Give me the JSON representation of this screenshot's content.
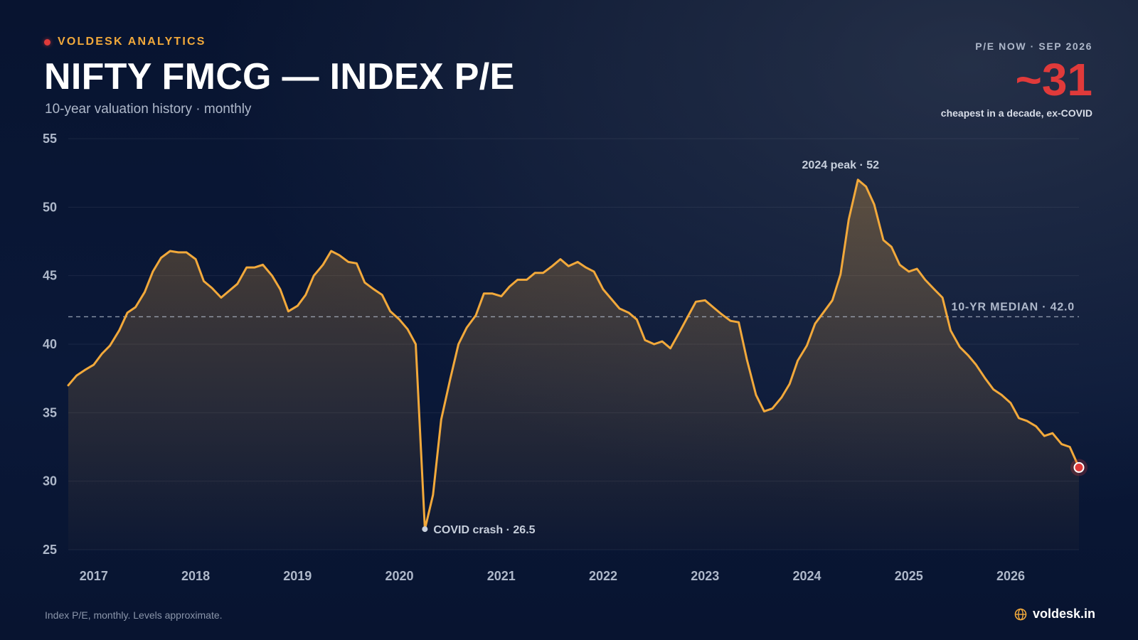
{
  "header": {
    "brand": "VOLDESK ANALYTICS",
    "title": "NIFTY FMCG — INDEX P/E",
    "subtitle": "10-year valuation history · monthly"
  },
  "kpi": {
    "label": "P/E NOW · SEP 2026",
    "value": "~31",
    "note": "cheapest in a decade, ex-COVID"
  },
  "footer": {
    "note": "Index P/E, monthly. Levels approximate.",
    "site": "voldesk.in",
    "site_icon": "globe-icon"
  },
  "colors": {
    "accent": "#f2a93b",
    "alert": "#e03a3a",
    "muted": "#aeb8ca",
    "background": "#0a1630"
  },
  "chart_data": {
    "type": "area",
    "ylim": [
      25,
      55
    ],
    "yticks": [
      55,
      50,
      45,
      40,
      35,
      30,
      25
    ],
    "xlim": [
      2016.92,
      2026.84
    ],
    "xticks": [
      {
        "label": "2017",
        "x": 2017.17
      },
      {
        "label": "2018",
        "x": 2018.17
      },
      {
        "label": "2019",
        "x": 2019.17
      },
      {
        "label": "2020",
        "x": 2020.17
      },
      {
        "label": "2021",
        "x": 2021.17
      },
      {
        "label": "2022",
        "x": 2022.17
      },
      {
        "label": "2023",
        "x": 2023.17
      },
      {
        "label": "2024",
        "x": 2024.17
      },
      {
        "label": "2025",
        "x": 2025.17
      },
      {
        "label": "2026",
        "x": 2026.17
      }
    ],
    "grid": true,
    "series": [
      {
        "x": [
          2016.92,
          2017.0,
          2017.08,
          2017.17,
          2017.25,
          2017.33,
          2017.42,
          2017.5,
          2017.58,
          2017.67,
          2017.75,
          2017.83,
          2017.92,
          2018.0,
          2018.08,
          2018.17,
          2018.25,
          2018.33,
          2018.42,
          2018.5,
          2018.58,
          2018.67,
          2018.75,
          2018.83,
          2018.92,
          2019.0,
          2019.08,
          2019.17,
          2019.25,
          2019.33,
          2019.42,
          2019.5,
          2019.58,
          2019.67,
          2019.75,
          2019.83,
          2019.92,
          2020.0,
          2020.08,
          2020.17,
          2020.25,
          2020.33,
          2020.42,
          2020.5,
          2020.58,
          2020.67,
          2020.75,
          2020.83,
          2020.92,
          2021.0,
          2021.08,
          2021.17,
          2021.25,
          2021.33,
          2021.42,
          2021.5,
          2021.58,
          2021.67,
          2021.75,
          2021.83,
          2021.92,
          2022.0,
          2022.08,
          2022.17,
          2022.25,
          2022.33,
          2022.42,
          2022.5,
          2022.58,
          2022.67,
          2022.75,
          2022.83,
          2022.92,
          2023.0,
          2023.08,
          2023.17,
          2023.25,
          2023.33,
          2023.42,
          2023.5,
          2023.58,
          2023.67,
          2023.75,
          2023.83,
          2023.92,
          2024.0,
          2024.08,
          2024.17,
          2024.25,
          2024.33,
          2024.42,
          2024.5,
          2024.58,
          2024.67,
          2024.75,
          2024.83,
          2024.92,
          2025.0,
          2025.08,
          2025.17,
          2025.25,
          2025.33,
          2025.42,
          2025.5,
          2025.58,
          2025.67,
          2025.75,
          2025.83,
          2025.92,
          2026.0,
          2026.08,
          2026.17,
          2026.25,
          2026.33,
          2026.42,
          2026.5,
          2026.58,
          2026.67,
          2026.75,
          2026.84
        ],
        "y": [
          37.0,
          37.7,
          38.1,
          38.5,
          39.3,
          39.9,
          41.0,
          42.3,
          42.7,
          43.8,
          45.3,
          46.3,
          46.8,
          46.7,
          46.7,
          46.2,
          44.6,
          44.1,
          43.4,
          43.9,
          44.4,
          45.6,
          45.6,
          45.8,
          45.0,
          44.0,
          42.4,
          42.8,
          43.6,
          45.0,
          45.8,
          46.8,
          46.5,
          46.0,
          45.9,
          44.5,
          44.0,
          43.6,
          42.4,
          41.8,
          41.1,
          40.0,
          26.5,
          29.0,
          34.5,
          37.5,
          40.0,
          41.2,
          42.1,
          43.7,
          43.7,
          43.5,
          44.2,
          44.7,
          44.7,
          45.2,
          45.2,
          45.7,
          46.2,
          45.7,
          46.0,
          45.6,
          45.3,
          44.0,
          43.3,
          42.6,
          42.3,
          41.8,
          40.3,
          40.0,
          40.2,
          39.7,
          40.9,
          42.0,
          43.1,
          43.2,
          42.7,
          42.2,
          41.7,
          41.6,
          38.9,
          36.3,
          35.1,
          35.3,
          36.1,
          37.1,
          38.8,
          39.9,
          41.5,
          42.3,
          43.2,
          45.1,
          49.1,
          52.0,
          51.5,
          50.2,
          47.6,
          47.1,
          45.8,
          45.3,
          45.5,
          44.7,
          44.0,
          43.4,
          41.0,
          39.8,
          39.2,
          38.5,
          37.5,
          36.7,
          36.3,
          35.7,
          34.6,
          34.4,
          34.0,
          33.3,
          33.5,
          32.7,
          32.5,
          31.0
        ]
      }
    ],
    "reference_lines": [
      {
        "y": 42.0,
        "label": "10-YR MEDIAN · 42.0"
      }
    ],
    "annotations": [
      {
        "x": 2024.5,
        "y": 52.0,
        "label": "2024 peak · 52"
      },
      {
        "x": 2020.42,
        "y": 26.5,
        "label": "COVID crash · 26.5"
      }
    ],
    "current_point": {
      "x": 2026.84,
      "y": 31.0
    }
  }
}
